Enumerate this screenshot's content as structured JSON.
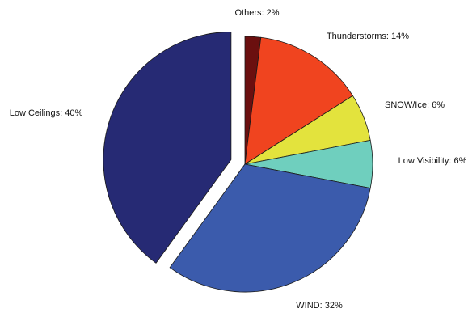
{
  "chart_data": {
    "type": "pie",
    "slices": [
      {
        "name": "Others",
        "value": 2,
        "label": "Others: 2%",
        "color": "#6b0f0f",
        "exploded": false
      },
      {
        "name": "Thunderstorms",
        "value": 14,
        "label": "Thunderstorms: 14%",
        "color": "#f0441f",
        "exploded": false
      },
      {
        "name": "SNOW/Ice",
        "value": 6,
        "label": "SNOW/Ice: 6%",
        "color": "#e3e33d",
        "exploded": false
      },
      {
        "name": "Low Visibility",
        "value": 6,
        "label": "Low Visibility: 6%",
        "color": "#6fcfbe",
        "exploded": false
      },
      {
        "name": "WIND",
        "value": 32,
        "label": "WIND: 32%",
        "color": "#3b5bac",
        "exploded": false
      },
      {
        "name": "Low Ceilings",
        "value": 40,
        "label": "Low Ceilings: 40%",
        "color": "#262a74",
        "exploded": true
      }
    ],
    "start": "top",
    "direction": "clockwise",
    "legend": "none"
  }
}
